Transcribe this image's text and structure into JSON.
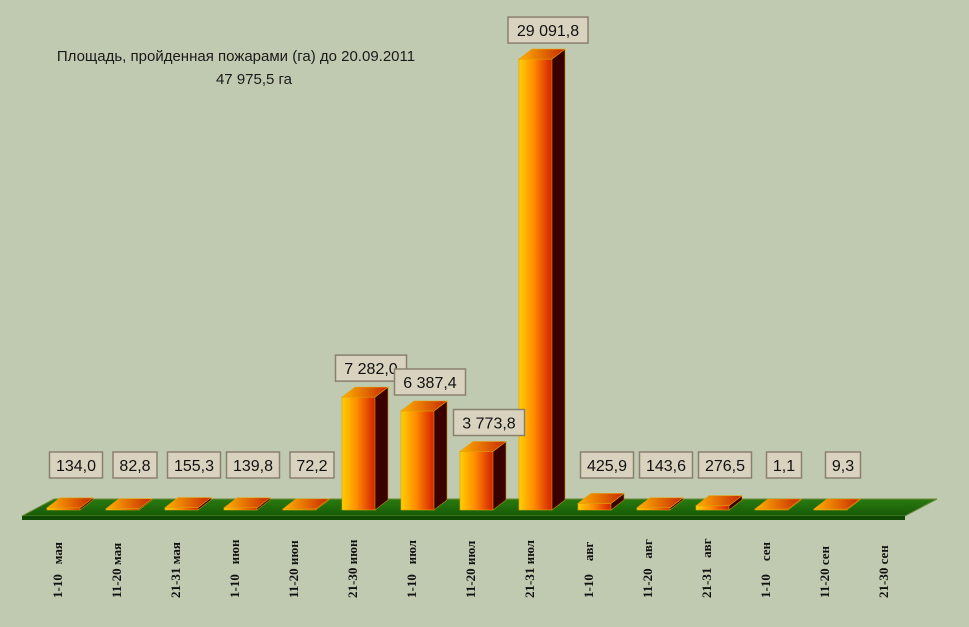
{
  "chart_data": {
    "type": "bar",
    "title": "Площадь, пройденная пожарами (га) до 20.09.2011",
    "subtitle": "47 975,5 га",
    "categories": [
      "1-10   мая",
      "11-20 мая",
      "21-31 мая",
      "1-10   июн",
      "11-20 июн",
      "21-30 июн",
      "1-10   июл",
      "11-20 июл",
      "21-31 июл",
      "1-10    авг",
      "11-20   авг",
      "21-31   авг",
      "1-10    сен",
      "11-20 сен",
      "21-30 сен"
    ],
    "values": [
      134.0,
      82.8,
      155.3,
      139.8,
      72.2,
      7282.0,
      6387.4,
      3773.8,
      29091.8,
      425.9,
      143.6,
      276.5,
      1.1,
      9.3,
      null
    ],
    "data_labels": [
      "134,0",
      "82,8",
      "155,3",
      "139,8",
      "72,2",
      "7 282,0",
      "6 387,4",
      "3 773,8",
      "29 091,8",
      "425,9",
      "143,6",
      "276,5",
      "1,1",
      "9,3",
      ""
    ],
    "ylim": [
      0,
      30000
    ],
    "xlabel": "",
    "ylabel": "",
    "grid": false,
    "legend": "none"
  },
  "colors": {
    "background": "#c0cab0",
    "floor": "#1f6f0a",
    "bar_front_top": "#ffb400",
    "bar_front_bottom": "#e04000",
    "bar_side": "#3a0000",
    "bar_top": "#f08a00",
    "label_box": "#d8d2be"
  }
}
